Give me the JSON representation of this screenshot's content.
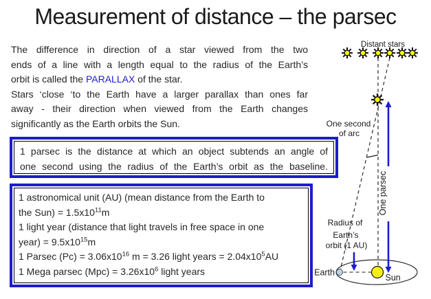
{
  "title": "Measurement of distance – the parsec",
  "colors": {
    "accent_blue": "#1c1ccd",
    "text": "#262626",
    "star_yellow": "#ffff00",
    "sun_yellow": "#f7ef0e",
    "earth_blue": "#b8d6ec"
  },
  "intro": {
    "para1_lines": [
      [
        {
          "t": "The difference in direction of a star viewed from the two"
        }
      ],
      [
        {
          "t": "ends of a line with a length equal to the radius of the Earth’s"
        }
      ],
      [
        {
          "t": "orbit is called the "
        },
        {
          "t": "PARALLAX",
          "b": true
        },
        {
          "t": " of the star."
        }
      ]
    ],
    "para2_lines": [
      [
        {
          "t": "Stars ‘close ‘to the Earth have a larger parallax than ones far"
        }
      ],
      [
        {
          "t": "away - their direction when viewed from the Earth changes"
        }
      ],
      [
        {
          "t": "significantly as the Earth orbits the Sun."
        }
      ]
    ]
  },
  "definition_box": {
    "lines": [
      [
        {
          "t": "1 parsec is the distance at which an object subtends an angle of"
        }
      ],
      [
        {
          "t": "one second using the radius of the Earth’s orbit as the baseline."
        }
      ]
    ]
  },
  "facts_box": {
    "lines": [
      [
        {
          "t": "1 astronomical unit (AU) (mean distance from the Earth to"
        }
      ],
      [
        {
          "t": "the Sun) = 1.5x10"
        },
        {
          "t": "11",
          "sup": true
        },
        {
          "t": "m"
        }
      ],
      [
        {
          "t": "1 light year (distance that light travels in free space in one"
        }
      ],
      [
        {
          "t": "year) = 9.5x10"
        },
        {
          "t": "15",
          "sup": true
        },
        {
          "t": "m"
        }
      ],
      [
        {
          "t": "1 Parsec (Pc) = 3.06x10"
        },
        {
          "t": "16",
          "sup": true
        },
        {
          "t": " m = 3.26 light years = 2.04x10"
        },
        {
          "t": "5",
          "sup": true
        },
        {
          "t": "AU"
        }
      ],
      [
        {
          "t": "1 Mega parsec (Mpc) = 3.26x10"
        },
        {
          "t": "6",
          "sup": true
        },
        {
          "t": " light years"
        }
      ]
    ]
  },
  "diagram": {
    "distant_stars_label": "Distant stars",
    "one_second_label_line1": "One second",
    "one_second_label_line2": "of arc",
    "one_parsec_label": "One parsec",
    "radius_label_line1": "Radius of",
    "radius_label_line2": "Earth’s",
    "radius_label_line3": "orbit (1 AU)",
    "earth_label": "Earth",
    "sun_label": "Sun"
  }
}
